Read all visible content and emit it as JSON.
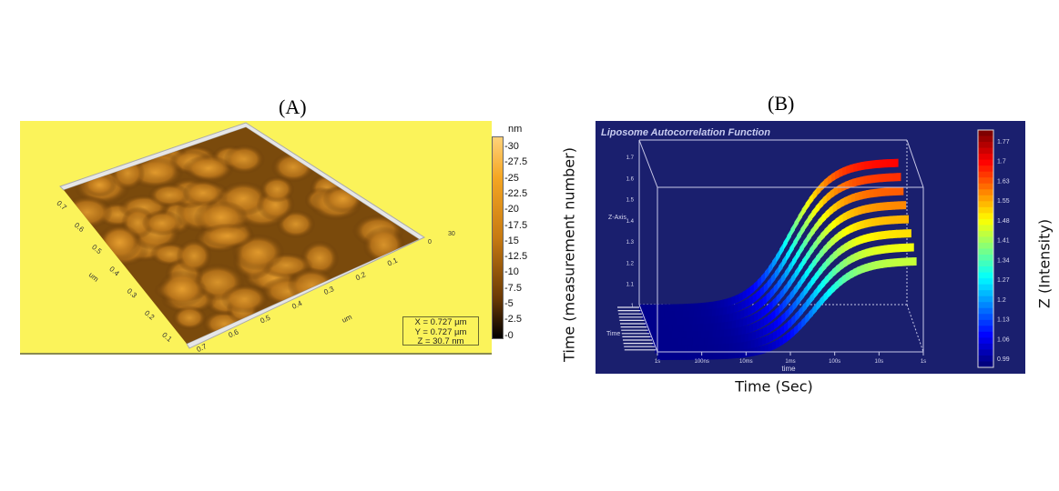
{
  "panels": {
    "a_label": "(A)",
    "b_label": "(B)"
  },
  "chart_data": [
    {
      "type": "heatmap",
      "subtype": "3d-afm-surface",
      "colorbar": {
        "unit": "nm",
        "ticks": [
          "30",
          "27.5",
          "25",
          "22.5",
          "20",
          "17.5",
          "15",
          "12.5",
          "10",
          "7.5",
          "5",
          "2.5",
          "0"
        ],
        "range": [
          0,
          30.7
        ],
        "colors": [
          "#000000",
          "#6b3a05",
          "#c77a12",
          "#f5a623",
          "#ffd27a"
        ]
      },
      "x_axis": {
        "label": "um",
        "ticks": [
          "0.1",
          "0.2",
          "0.3",
          "0.4",
          "0.5",
          "0.6",
          "0.7"
        ]
      },
      "y_axis": {
        "label": "um",
        "ticks": [
          "0.1",
          "0.2",
          "0.3",
          "0.4",
          "0.5",
          "0.6",
          "0.7"
        ]
      },
      "z_axis": {
        "ticks": [
          "0",
          "30"
        ]
      },
      "info": [
        "X = 0.727 µm",
        "Y = 0.727 µm",
        "Z = 30.7 nm"
      ],
      "background": "#fbf35a"
    },
    {
      "type": "area",
      "subtype": "3d-surface",
      "title": "Liposome Autocorrelation Function",
      "xlabel": "Time (Sec)",
      "inner_xlabel": "time",
      "ylabel": "Time (measurement number)",
      "inner_ylabel": "Time",
      "zlabel": "Z (Intensity)",
      "inner_zlabel": "Z-Axis",
      "x_ticks": [
        "1s",
        "100ns",
        "10ms",
        "1ms",
        "100s",
        "10s",
        "1s"
      ],
      "z_ticks": [
        "1.7",
        "1.6",
        "1.5",
        "1.4",
        "1.3",
        "1.2",
        "1.1",
        "1"
      ],
      "z_range": [
        0.99,
        1.8
      ],
      "series_count": 8,
      "plateau_low": 1.0,
      "plateau_high": 1.7,
      "colorbar_ticks": [
        "1.77",
        "1.7",
        "1.63",
        "1.55",
        "1.48",
        "1.41",
        "1.34",
        "1.27",
        "1.2",
        "1.13",
        "1.06",
        "0.99"
      ],
      "colormap": "jet",
      "background": "#1a1f6e"
    }
  ]
}
